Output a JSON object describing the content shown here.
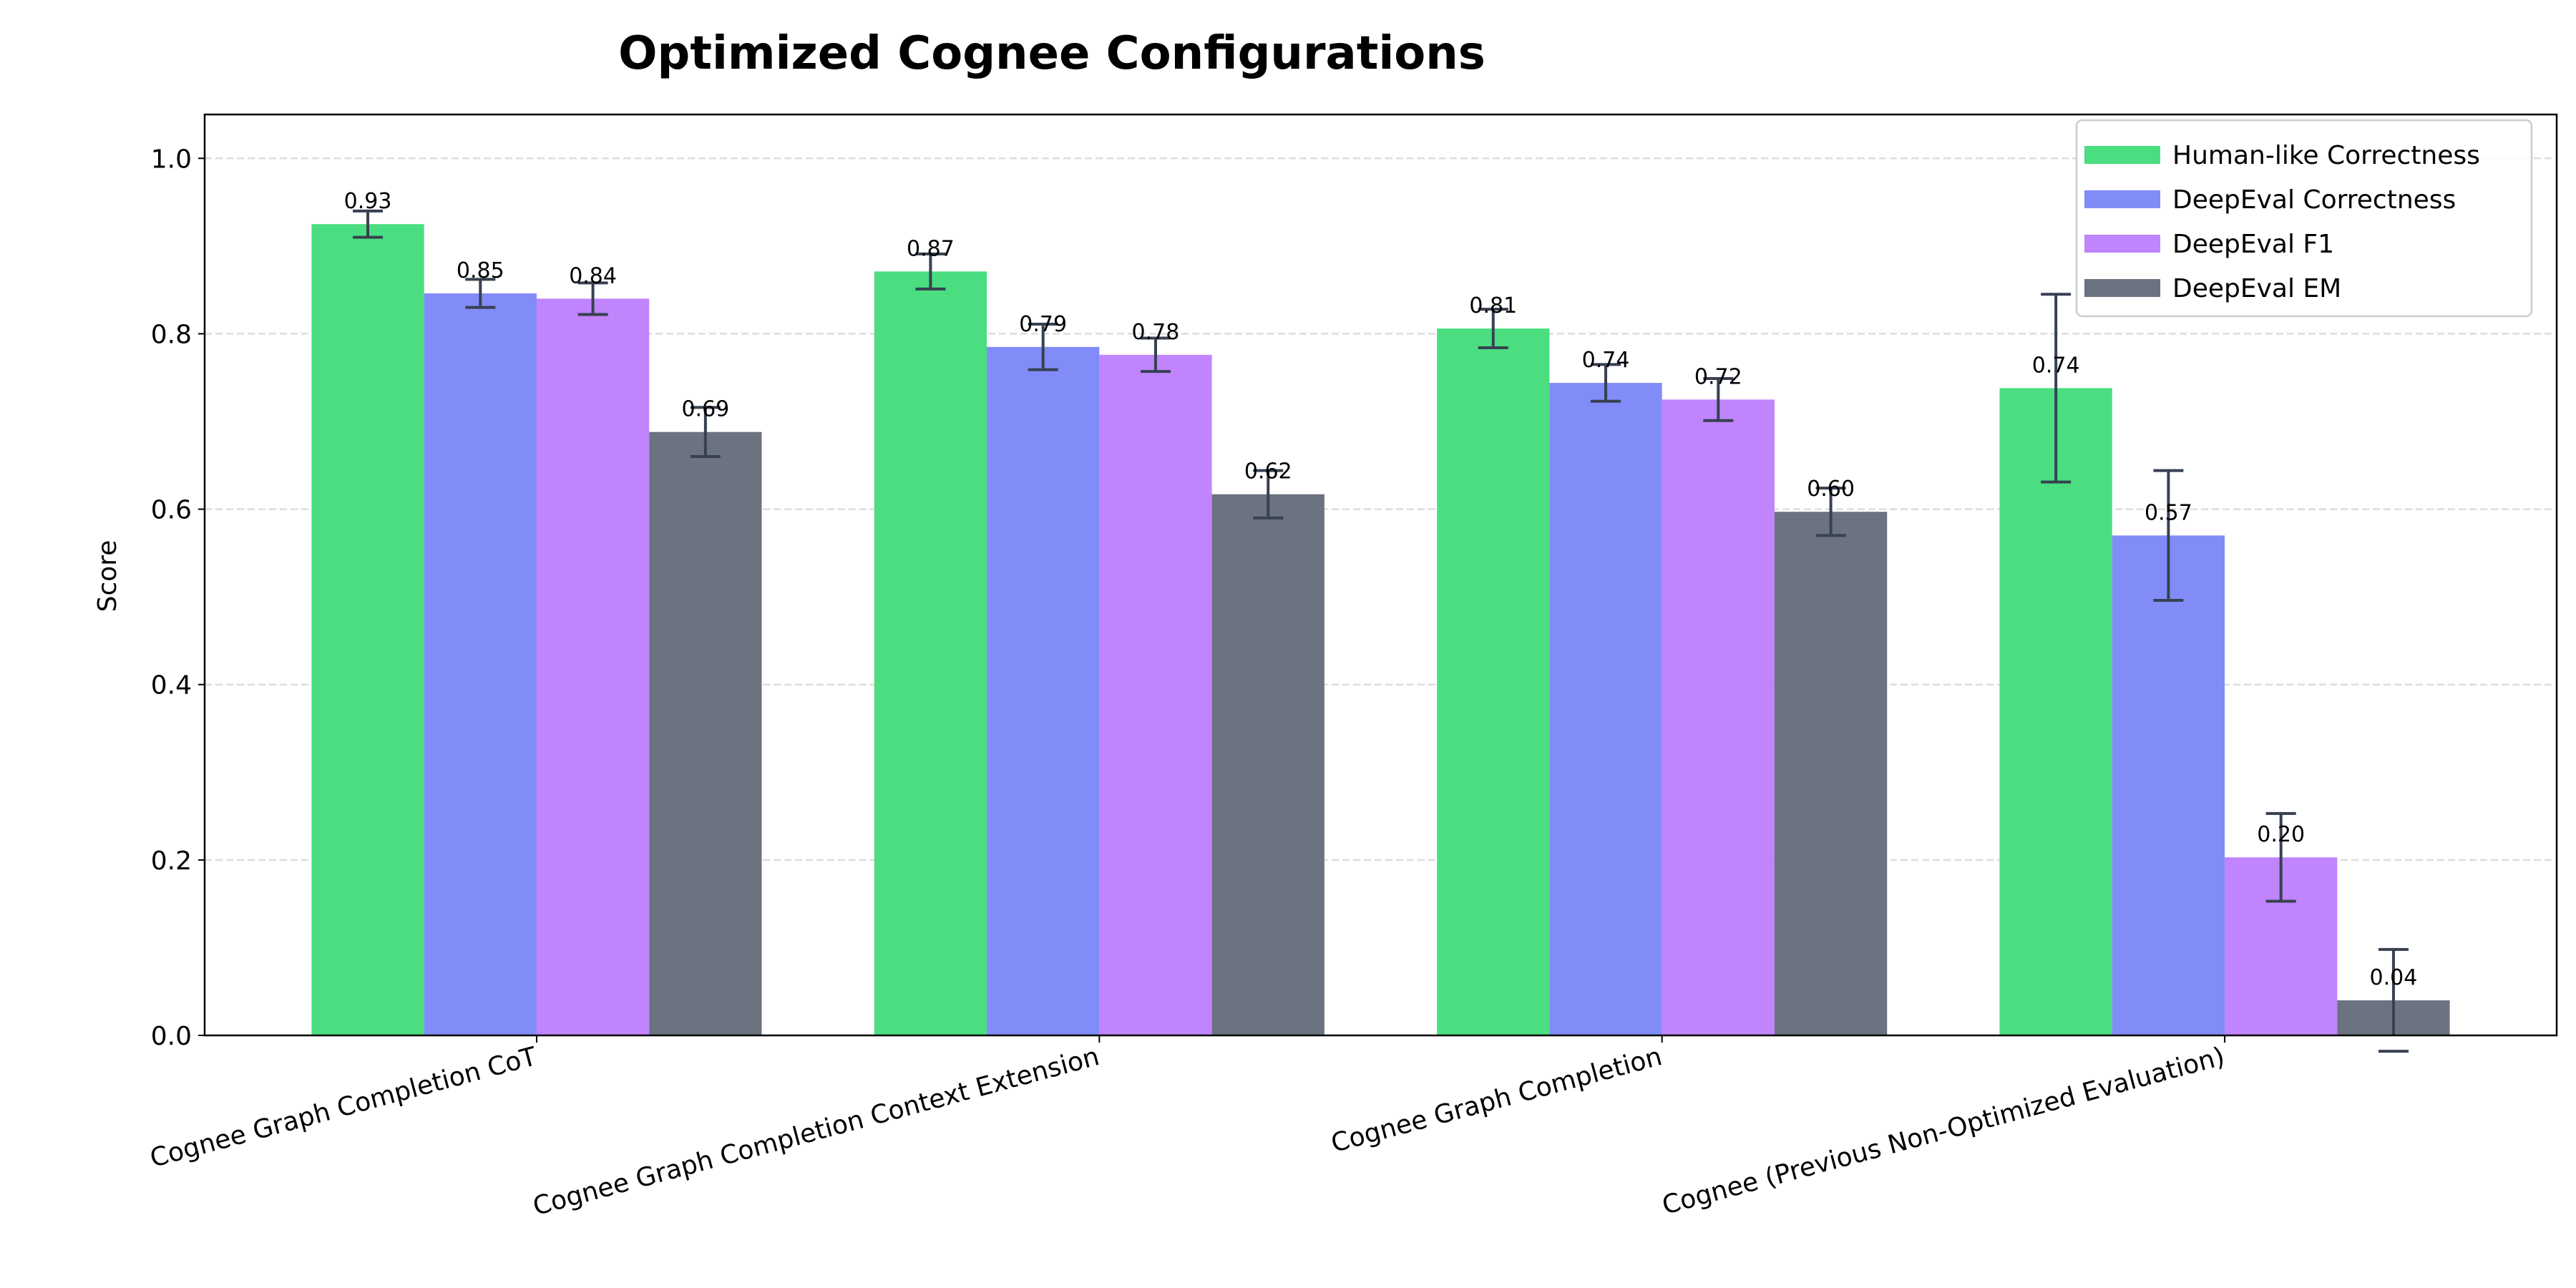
{
  "chart_data": {
    "type": "bar",
    "title": "Optimized Cognee Configurations",
    "xlabel": "",
    "ylabel": "Score",
    "ylim": [
      0,
      1.05
    ],
    "yticks": [
      "0.0",
      "0.2",
      "0.4",
      "0.6",
      "0.8",
      "1.0"
    ],
    "grid": "y-dashed",
    "legend_position": "top-right",
    "categories": [
      "Cognee Graph Completion CoT",
      "Cognee Graph Completion Context Extension",
      "Cognee Graph Completion",
      "Cognee (Previous Non-Optimized Evaluation)"
    ],
    "series": [
      {
        "name": "Human-like Correctness",
        "color": "#4ade80",
        "values": [
          0.925,
          0.871,
          0.806,
          0.738
        ],
        "errors": [
          0.015,
          0.02,
          0.022,
          0.107
        ],
        "labels": [
          "0.93",
          "0.87",
          "0.81",
          "0.74"
        ]
      },
      {
        "name": "DeepEval Correctness",
        "color": "#818cf8",
        "values": [
          0.846,
          0.785,
          0.744,
          0.57
        ],
        "errors": [
          0.016,
          0.026,
          0.021,
          0.074
        ],
        "labels": [
          "0.85",
          "0.79",
          "0.74",
          "0.57"
        ]
      },
      {
        "name": "DeepEval F1",
        "color": "#c084fc",
        "values": [
          0.84,
          0.776,
          0.725,
          0.203
        ],
        "errors": [
          0.018,
          0.019,
          0.024,
          0.05
        ],
        "labels": [
          "0.84",
          "0.78",
          "0.72",
          "0.20"
        ]
      },
      {
        "name": "DeepEval EM",
        "color": "#6b7280",
        "values": [
          0.688,
          0.617,
          0.597,
          0.04
        ],
        "errors": [
          0.028,
          0.027,
          0.027,
          0.058
        ],
        "labels": [
          "0.69",
          "0.62",
          "0.60",
          "0.04"
        ]
      }
    ],
    "error_bar_color": "#374151"
  }
}
